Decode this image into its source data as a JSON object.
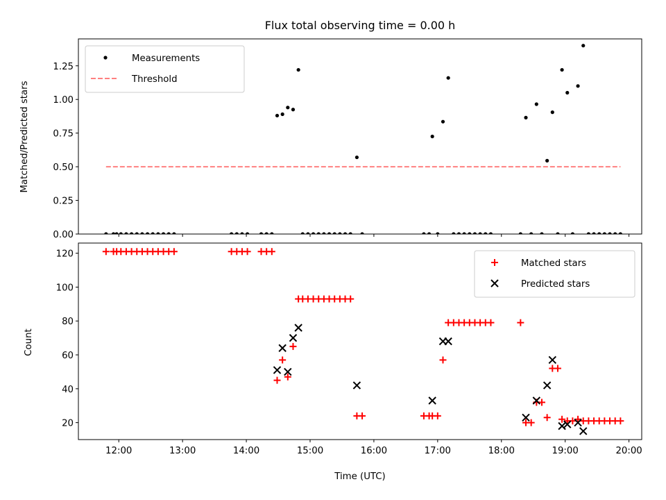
{
  "chart_data": [
    {
      "type": "scatter",
      "title": "Flux total observing time = 0.00 h",
      "xlabel": "",
      "ylabel": "Matched/Predicted stars",
      "xlim": [
        "11:22",
        "20:12"
      ],
      "ylim": [
        0,
        1.45
      ],
      "yticks": [
        0.0,
        0.25,
        0.5,
        0.75,
        1.0,
        1.25
      ],
      "ytick_labels": [
        "0.00",
        "0.25",
        "0.50",
        "0.75",
        "1.00",
        "1.25"
      ],
      "legend_position": "upper left",
      "series": [
        {
          "name": "Measurements",
          "marker": "dot",
          "color": "#000000",
          "points": [
            [
              "11:48",
              0
            ],
            [
              "11:55",
              0
            ],
            [
              "11:58",
              0
            ],
            [
              "12:02",
              0
            ],
            [
              "12:07",
              0
            ],
            [
              "12:12",
              0
            ],
            [
              "12:17",
              0
            ],
            [
              "12:22",
              0
            ],
            [
              "12:27",
              0
            ],
            [
              "12:32",
              0
            ],
            [
              "12:37",
              0
            ],
            [
              "12:42",
              0
            ],
            [
              "12:47",
              0
            ],
            [
              "12:52",
              0
            ],
            [
              "13:46",
              0
            ],
            [
              "13:51",
              0
            ],
            [
              "13:56",
              0
            ],
            [
              "14:01",
              0
            ],
            [
              "14:14",
              0
            ],
            [
              "14:19",
              0
            ],
            [
              "14:24",
              0
            ],
            [
              "14:29",
              0.88
            ],
            [
              "14:34",
              0.89
            ],
            [
              "14:39",
              0.94
            ],
            [
              "14:44",
              0.925
            ],
            [
              "14:49",
              1.22
            ],
            [
              "14:53",
              0
            ],
            [
              "14:58",
              0
            ],
            [
              "15:03",
              0
            ],
            [
              "15:08",
              0
            ],
            [
              "15:13",
              0
            ],
            [
              "15:18",
              0
            ],
            [
              "15:23",
              0
            ],
            [
              "15:28",
              0
            ],
            [
              "15:33",
              0
            ],
            [
              "15:38",
              0
            ],
            [
              "15:44",
              0.57
            ],
            [
              "15:49",
              0
            ],
            [
              "16:47",
              0
            ],
            [
              "16:52",
              0
            ],
            [
              "16:55",
              0.725
            ],
            [
              "17:00",
              0
            ],
            [
              "17:05",
              0.835
            ],
            [
              "17:10",
              1.16
            ],
            [
              "17:15",
              0
            ],
            [
              "17:20",
              0
            ],
            [
              "17:25",
              0
            ],
            [
              "17:30",
              0
            ],
            [
              "17:35",
              0
            ],
            [
              "17:40",
              0
            ],
            [
              "17:45",
              0
            ],
            [
              "17:50",
              0
            ],
            [
              "18:18",
              0
            ],
            [
              "18:23",
              0.865
            ],
            [
              "18:28",
              0
            ],
            [
              "18:33",
              0.965
            ],
            [
              "18:38",
              0
            ],
            [
              "18:43",
              0.545
            ],
            [
              "18:48",
              0.905
            ],
            [
              "18:53",
              0
            ],
            [
              "18:57",
              1.22
            ],
            [
              "19:02",
              1.05
            ],
            [
              "19:07",
              0
            ],
            [
              "19:12",
              1.1
            ],
            [
              "19:17",
              1.4
            ],
            [
              "19:22",
              0
            ],
            [
              "19:27",
              0
            ],
            [
              "19:32",
              0
            ],
            [
              "19:37",
              0
            ],
            [
              "19:42",
              0
            ],
            [
              "19:47",
              0
            ],
            [
              "19:52",
              0
            ]
          ]
        },
        {
          "name": "Threshold",
          "marker": "dashed-line",
          "color": "#ff8080",
          "points": [
            [
              "11:48",
              0.5
            ],
            [
              "19:52",
              0.5
            ]
          ]
        }
      ]
    },
    {
      "type": "scatter",
      "title": "",
      "xlabel": "Time (UTC)",
      "ylabel": "Count",
      "xlim": [
        "11:22",
        "20:12"
      ],
      "ylim": [
        10,
        126
      ],
      "yticks": [
        20,
        40,
        60,
        80,
        100,
        120
      ],
      "ytick_labels": [
        "20",
        "40",
        "60",
        "80",
        "100",
        "120"
      ],
      "xticks": [
        "12:00",
        "13:00",
        "14:00",
        "15:00",
        "16:00",
        "17:00",
        "18:00",
        "19:00",
        "20:00"
      ],
      "legend_position": "upper right",
      "series": [
        {
          "name": "Matched stars",
          "marker": "plus",
          "color": "#ff0000",
          "points": [
            [
              "11:48",
              121
            ],
            [
              "11:55",
              121
            ],
            [
              "11:58",
              121
            ],
            [
              "12:02",
              121
            ],
            [
              "12:07",
              121
            ],
            [
              "12:12",
              121
            ],
            [
              "12:17",
              121
            ],
            [
              "12:22",
              121
            ],
            [
              "12:27",
              121
            ],
            [
              "12:32",
              121
            ],
            [
              "12:37",
              121
            ],
            [
              "12:42",
              121
            ],
            [
              "12:47",
              121
            ],
            [
              "12:52",
              121
            ],
            [
              "13:46",
              121
            ],
            [
              "13:51",
              121
            ],
            [
              "13:56",
              121
            ],
            [
              "14:01",
              121
            ],
            [
              "14:14",
              121
            ],
            [
              "14:19",
              121
            ],
            [
              "14:24",
              121
            ],
            [
              "14:29",
              45
            ],
            [
              "14:34",
              57
            ],
            [
              "14:39",
              47
            ],
            [
              "14:44",
              65
            ],
            [
              "14:49",
              93
            ],
            [
              "14:53",
              93
            ],
            [
              "14:58",
              93
            ],
            [
              "15:03",
              93
            ],
            [
              "15:08",
              93
            ],
            [
              "15:13",
              93
            ],
            [
              "15:18",
              93
            ],
            [
              "15:23",
              93
            ],
            [
              "15:28",
              93
            ],
            [
              "15:33",
              93
            ],
            [
              "15:38",
              93
            ],
            [
              "15:44",
              24
            ],
            [
              "15:49",
              24
            ],
            [
              "16:47",
              24
            ],
            [
              "16:52",
              24
            ],
            [
              "16:55",
              24
            ],
            [
              "17:00",
              24
            ],
            [
              "17:05",
              57
            ],
            [
              "17:10",
              79
            ],
            [
              "17:15",
              79
            ],
            [
              "17:20",
              79
            ],
            [
              "17:25",
              79
            ],
            [
              "17:30",
              79
            ],
            [
              "17:35",
              79
            ],
            [
              "17:40",
              79
            ],
            [
              "17:45",
              79
            ],
            [
              "17:50",
              79
            ],
            [
              "18:18",
              79
            ],
            [
              "18:23",
              20
            ],
            [
              "18:28",
              20
            ],
            [
              "18:33",
              32
            ],
            [
              "18:38",
              32
            ],
            [
              "18:43",
              23
            ],
            [
              "18:48",
              52
            ],
            [
              "18:53",
              52
            ],
            [
              "18:57",
              22
            ],
            [
              "19:02",
              21
            ],
            [
              "19:07",
              21
            ],
            [
              "19:12",
              22
            ],
            [
              "19:17",
              21
            ],
            [
              "19:22",
              21
            ],
            [
              "19:27",
              21
            ],
            [
              "19:32",
              21
            ],
            [
              "19:37",
              21
            ],
            [
              "19:42",
              21
            ],
            [
              "19:47",
              21
            ],
            [
              "19:52",
              21
            ]
          ]
        },
        {
          "name": "Predicted stars",
          "marker": "x",
          "color": "#000000",
          "points": [
            [
              "14:29",
              51
            ],
            [
              "14:34",
              64
            ],
            [
              "14:39",
              50
            ],
            [
              "14:44",
              70
            ],
            [
              "14:49",
              76
            ],
            [
              "15:44",
              42
            ],
            [
              "16:55",
              33
            ],
            [
              "17:05",
              68
            ],
            [
              "17:10",
              68
            ],
            [
              "18:23",
              23
            ],
            [
              "18:33",
              33
            ],
            [
              "18:43",
              42
            ],
            [
              "18:48",
              57
            ],
            [
              "18:57",
              18
            ],
            [
              "19:02",
              19
            ],
            [
              "19:12",
              20
            ],
            [
              "19:17",
              15
            ]
          ]
        }
      ]
    }
  ]
}
